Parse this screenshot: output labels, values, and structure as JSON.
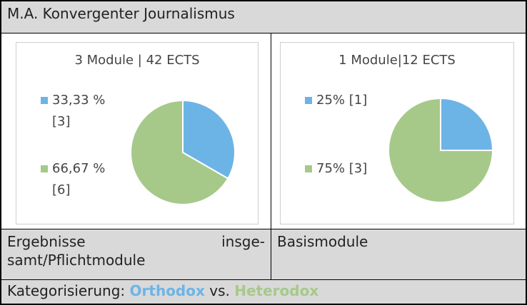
{
  "header": {
    "title": "M.A. Konvergenter Journalismus"
  },
  "charts": [
    {
      "type": "pie",
      "title": "3 Module | 42 ECTS",
      "values": [
        33.33,
        66.67
      ],
      "value_labels": [
        "33,33 % [3]",
        "66,67 % [6]"
      ],
      "colors": [
        "#6db4e6",
        "#a6c98a"
      ]
    },
    {
      "type": "pie",
      "title": "1 Module|12 ECTS",
      "values": [
        25,
        75
      ],
      "value_labels": [
        "25% [1]",
        "75% [3]"
      ],
      "colors": [
        "#6db4e6",
        "#a6c98a"
      ]
    }
  ],
  "labels": [
    "Ergebnisse insge-samt/Pflichtmodule",
    "Basismodule"
  ],
  "footer": {
    "prefix": "Kategorisierung:",
    "term1": "Orthodox",
    "middle": "vs.",
    "term2": "Heterodox"
  }
}
